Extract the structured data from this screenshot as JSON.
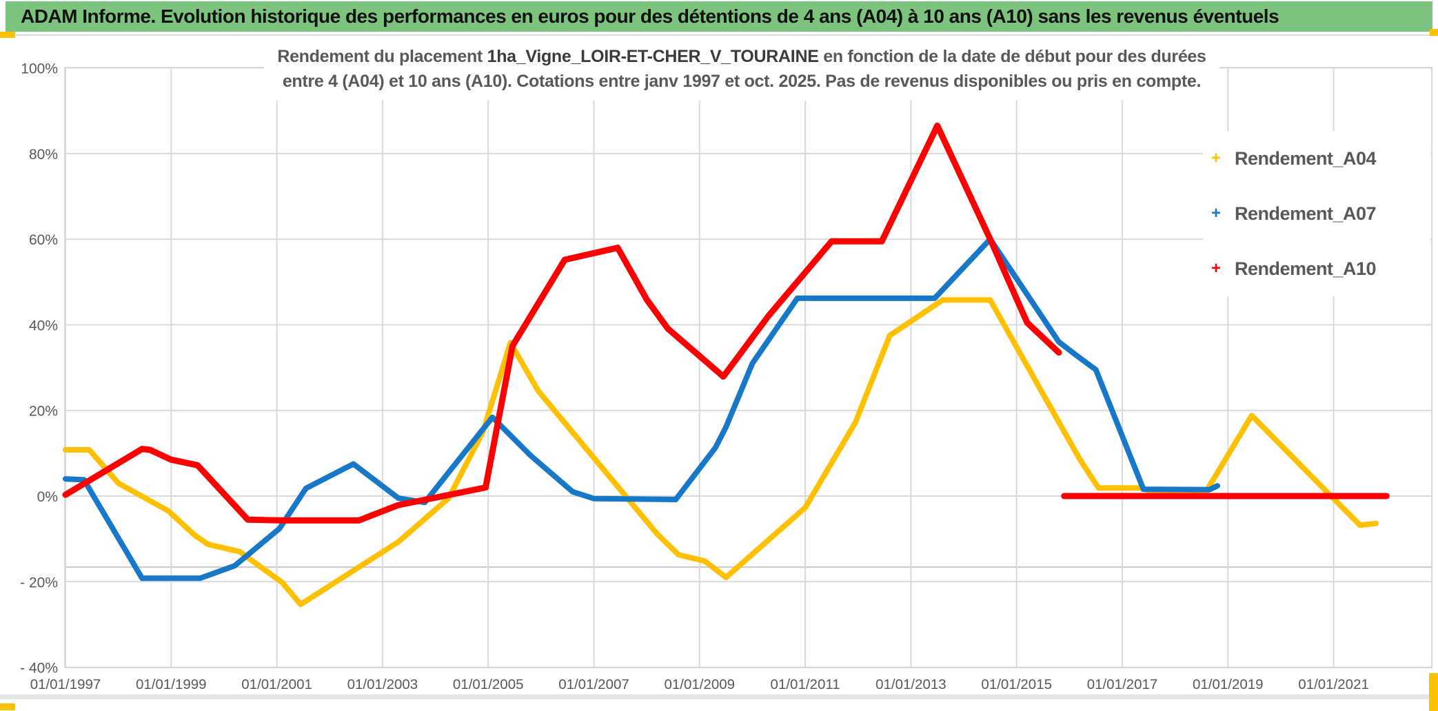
{
  "window": {
    "title_bar": {
      "text": "ADAM Informe. Evolution historique des performances en euros pour des détentions de 4 ans (A04) à 10 ans (A10) sans les revenus éventuels",
      "background_color": "#7cc47e"
    }
  },
  "chart_data": {
    "type": "line",
    "title_line1_prefix": "Rendement du placement ",
    "title_line1_name": "1ha_Vigne_LOIR-ET-CHER_V_TOURAINE",
    "title_line1_suffix": " en fonction de la date de début pour des durées",
    "title_line2": "entre 4 (A04) et 10 ans (A10). Cotations entre janv 1997 et oct. 2025. Pas de revenus disponibles ou pris en compte.",
    "xlabel": "",
    "ylabel": "",
    "ylim": [
      -40,
      100
    ],
    "y_tick_values": [
      100,
      80,
      60,
      40,
      20,
      0,
      -20,
      -40
    ],
    "y_tick_labels": [
      "100%",
      "80%",
      "60%",
      "40%",
      "20%",
      "0%",
      "- 20%",
      "- 40%"
    ],
    "x_tick_years": [
      1997,
      1999,
      2001,
      2003,
      2005,
      2007,
      2009,
      2011,
      2013,
      2015,
      2017,
      2019,
      2021
    ],
    "x_tick_labels": [
      "01/01/1997",
      "01/01/1999",
      "01/01/2001",
      "01/01/2003",
      "01/01/2005",
      "01/01/2007",
      "01/01/2009",
      "01/01/2011",
      "01/01/2013",
      "01/01/2015",
      "01/01/2017",
      "01/01/2019",
      "01/01/2021"
    ],
    "grid": true,
    "extra_gridline_value": -16.6,
    "legend": {
      "position": "right",
      "entries": [
        {
          "label": "Rendement_A04",
          "color": "#FFC000",
          "marker": "plus"
        },
        {
          "label": "Rendement_A07",
          "color": "#1878C8",
          "marker": "plus"
        },
        {
          "label": "Rendement_A10",
          "color": "#FE0000",
          "marker": "plus"
        }
      ]
    },
    "series": [
      {
        "name": "Rendement_A04",
        "color": "#FFC000",
        "paths": [
          [
            [
              1997.0,
              10.8
            ],
            [
              1997.45,
              10.8
            ],
            [
              1998.0,
              3.0
            ],
            [
              1998.95,
              -3.5
            ],
            [
              1999.45,
              -9.2
            ],
            [
              1999.7,
              -11.3
            ],
            [
              2000.3,
              -13.0
            ],
            [
              2001.1,
              -20.2
            ],
            [
              2001.45,
              -25.3
            ],
            [
              2003.3,
              -10.7
            ],
            [
              2004.25,
              -0.5
            ],
            [
              2004.9,
              15.0
            ],
            [
              2005.42,
              35.8
            ],
            [
              2005.95,
              24.5
            ],
            [
              2008.2,
              -8.9
            ],
            [
              2008.6,
              -13.7
            ],
            [
              2009.1,
              -15.2
            ],
            [
              2009.5,
              -19.0
            ],
            [
              2011.0,
              -2.7
            ],
            [
              2011.95,
              17.2
            ],
            [
              2012.6,
              37.5
            ],
            [
              2013.6,
              45.8
            ],
            [
              2014.5,
              45.8
            ],
            [
              2015.4,
              26.0
            ],
            [
              2016.2,
              8.5
            ],
            [
              2016.55,
              1.9
            ],
            [
              2017.35,
              1.9
            ],
            [
              2017.7,
              0.5
            ],
            [
              2018.55,
              0.3
            ],
            [
              2019.45,
              18.8
            ],
            [
              2020.95,
              0.0
            ],
            [
              2021.5,
              -6.8
            ],
            [
              2021.8,
              -6.4
            ]
          ]
        ]
      },
      {
        "name": "Rendement_A07",
        "color": "#1878C8",
        "paths": [
          [
            [
              1997.0,
              4.0
            ],
            [
              1997.35,
              3.8
            ],
            [
              1998.45,
              -19.2
            ],
            [
              1999.55,
              -19.2
            ],
            [
              2000.2,
              -16.3
            ],
            [
              2001.05,
              -7.6
            ],
            [
              2001.55,
              1.8
            ],
            [
              2002.45,
              7.5
            ],
            [
              2003.3,
              -0.5
            ],
            [
              2003.8,
              -1.5
            ],
            [
              2005.08,
              18.4
            ],
            [
              2005.8,
              9.5
            ],
            [
              2006.6,
              1.0
            ],
            [
              2007.0,
              -0.6
            ],
            [
              2008.55,
              -0.8
            ],
            [
              2009.3,
              11.3
            ],
            [
              2009.5,
              16.1
            ],
            [
              2010.0,
              31.0
            ],
            [
              2010.85,
              46.2
            ],
            [
              2013.45,
              46.2
            ],
            [
              2014.5,
              60.0
            ],
            [
              2015.8,
              36.0
            ],
            [
              2016.15,
              32.7
            ],
            [
              2016.5,
              29.5
            ],
            [
              2017.4,
              1.6
            ],
            [
              2018.65,
              1.5
            ],
            [
              2018.8,
              2.4
            ]
          ]
        ]
      },
      {
        "name": "Rendement_A10",
        "color": "#FE0000",
        "paths": [
          [
            [
              1997.0,
              0.3
            ],
            [
              1998.45,
              11.0
            ],
            [
              1998.6,
              10.8
            ],
            [
              1999.0,
              8.5
            ],
            [
              1999.5,
              7.2
            ],
            [
              2000.45,
              -5.5
            ],
            [
              2001.1,
              -5.7
            ],
            [
              2002.55,
              -5.7
            ],
            [
              2003.3,
              -2.1
            ],
            [
              2004.15,
              0.0
            ],
            [
              2004.95,
              2.0
            ],
            [
              2005.46,
              35.1
            ],
            [
              2006.45,
              55.2
            ],
            [
              2007.45,
              58.0
            ],
            [
              2008.0,
              45.9
            ],
            [
              2008.4,
              39.1
            ],
            [
              2009.45,
              27.9
            ],
            [
              2010.3,
              42.0
            ],
            [
              2011.5,
              59.5
            ],
            [
              2012.45,
              59.5
            ],
            [
              2013.5,
              86.5
            ],
            [
              2014.5,
              60.0
            ],
            [
              2015.2,
              40.5
            ],
            [
              2015.8,
              33.5
            ]
          ],
          [
            [
              2015.9,
              0.0
            ],
            [
              2022.0,
              0.0
            ]
          ]
        ]
      }
    ]
  }
}
